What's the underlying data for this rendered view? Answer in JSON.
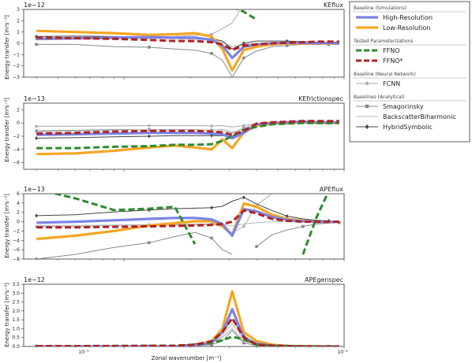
{
  "chart_data": [
    {
      "type": "line",
      "title": "KEflux",
      "offset_label": "1e−12",
      "ylabel": "Energy transfer [m²s⁻³]",
      "ylim": [
        -3,
        3
      ],
      "yticks": [
        "−3",
        "−2",
        "−1",
        "0",
        "1",
        "2",
        "3"
      ],
      "x": [
        4e-06,
        6e-06,
        9e-06,
        1.3e-05,
        1.7e-05,
        2.1e-05,
        2.5e-05,
        2.8e-05,
        3.1e-05,
        3.5e-05,
        4e-05,
        4.7e-05,
        5.5e-05,
        6.5e-05,
        7.5e-05,
        8.5e-05,
        9.5e-05
      ],
      "series": [
        {
          "key": "hr",
          "values": [
            0.4,
            0.45,
            0.5,
            0.55,
            0.5,
            0.5,
            0.3,
            -0.2,
            -1.3,
            -0.3,
            -0.1,
            0.0,
            0.05,
            0.05,
            0.0,
            0.05,
            0.0
          ]
        },
        {
          "key": "lr",
          "values": [
            1.1,
            1.0,
            0.9,
            0.75,
            0.8,
            0.9,
            0.6,
            -0.5,
            -2.4,
            -0.6,
            -0.3,
            -0.1,
            0.0,
            0.0,
            -0.05,
            0.0,
            0.0
          ]
        },
        {
          "key": "ffno",
          "values": [
            null,
            null,
            null,
            null,
            null,
            null,
            null,
            null,
            3.2,
            2.8,
            2.1,
            null,
            null,
            null,
            null,
            null,
            null
          ]
        },
        {
          "key": "ffnos",
          "values": [
            0.5,
            0.45,
            0.4,
            0.3,
            0.2,
            0.2,
            0.1,
            -0.1,
            -0.6,
            -0.2,
            -0.1,
            0.0,
            0.05,
            0.1,
            0.15,
            0.15,
            0.15
          ]
        },
        {
          "key": "fcnn",
          "values": [
            0.4,
            0.45,
            0.5,
            0.55,
            0.6,
            0.7,
            0.8,
            1.3,
            1.8,
            3.5,
            null,
            null,
            null,
            null,
            null,
            null,
            null
          ]
        },
        {
          "key": "smag",
          "values": [
            -0.1,
            -0.1,
            -0.3,
            -0.35,
            -0.5,
            -0.6,
            -0.9,
            -1.5,
            -3.0,
            -1.3,
            -0.7,
            -0.3,
            -0.2,
            -0.1,
            -0.1,
            -0.1,
            -0.1
          ]
        },
        {
          "key": "bsb",
          "values": [
            0.3,
            0.35,
            0.4,
            0.45,
            0.4,
            0.35,
            0.3,
            0.1,
            -0.3,
            -0.1,
            0.0,
            0.05,
            0.1,
            0.1,
            0.1,
            0.1,
            0.1
          ]
        },
        {
          "key": "hyb",
          "values": [
            0.6,
            0.65,
            0.6,
            0.55,
            0.5,
            0.5,
            0.4,
            0.2,
            -0.5,
            0.0,
            0.2,
            0.2,
            0.2,
            0.15,
            0.1,
            0.1,
            0.1
          ]
        }
      ]
    },
    {
      "type": "line",
      "title": "KEfrictionspec",
      "offset_label": "1e−13",
      "ylabel": "Energy transfer [m²s⁻³]",
      "ylim": [
        -7,
        3
      ],
      "yticks": [
        "−6",
        "−4",
        "−2",
        "0",
        "2"
      ],
      "x": [
        4e-06,
        6e-06,
        9e-06,
        1.3e-05,
        1.7e-05,
        2.1e-05,
        2.5e-05,
        2.8e-05,
        3.1e-05,
        3.5e-05,
        4e-05,
        4.7e-05,
        5.5e-05,
        6.5e-05,
        7.5e-05,
        8.5e-05,
        9.5e-05
      ],
      "series": [
        {
          "key": "hr",
          "values": [
            -1.8,
            -1.7,
            -1.6,
            -1.5,
            -1.5,
            -1.5,
            -1.6,
            -1.7,
            -2.3,
            -1.5,
            -0.2,
            0.0,
            0.1,
            0.2,
            0.1,
            0.1,
            0.1
          ]
        },
        {
          "key": "lr",
          "values": [
            -4.7,
            -4.6,
            -4.2,
            -3.7,
            -3.4,
            -3.7,
            -4.0,
            -2.5,
            -3.8,
            -1.4,
            -0.4,
            -0.1,
            0.0,
            0.1,
            0.0,
            0.0,
            0.0
          ]
        },
        {
          "key": "ffno",
          "values": [
            -3.8,
            -3.8,
            -3.6,
            -3.5,
            -3.3,
            -3.3,
            -3.2,
            -2.7,
            -2.0,
            -1.0,
            -0.6,
            -0.2,
            -0.1,
            0.0,
            0.0,
            0.0,
            0.0
          ]
        },
        {
          "key": "ffnos",
          "values": [
            -1.6,
            -1.5,
            -1.3,
            -1.2,
            -1.2,
            -1.2,
            -1.3,
            -1.4,
            -1.8,
            -1.2,
            -0.1,
            0.1,
            0.2,
            0.3,
            0.3,
            0.3,
            0.3
          ]
        },
        {
          "key": "fcnn",
          "values": [
            -0.5,
            -0.5,
            -0.45,
            -0.4,
            -0.4,
            -0.4,
            -0.45,
            -0.4,
            -0.6,
            -0.4,
            -0.1,
            0.0,
            0.0,
            0.0,
            0.0,
            0.0,
            0.0
          ]
        },
        {
          "key": "smag",
          "values": [
            -1.2,
            -1.1,
            -1.0,
            -1.0,
            -1.0,
            -1.0,
            -1.1,
            -1.0,
            -1.5,
            -0.8,
            -0.1,
            0.0,
            0.0,
            0.0,
            0.0,
            0.0,
            0.0
          ]
        },
        {
          "key": "bsb",
          "values": [
            -1.3,
            -1.2,
            -1.1,
            -1.0,
            -1.0,
            -1.0,
            -1.1,
            -1.0,
            -1.4,
            -0.8,
            -0.1,
            0.0,
            0.0,
            0.0,
            0.0,
            0.0,
            0.0
          ]
        },
        {
          "key": "hyb",
          "values": [
            -2.3,
            -2.2,
            -2.1,
            -2.0,
            -1.9,
            -1.9,
            -1.9,
            -1.9,
            -2.0,
            -1.3,
            -0.2,
            0.0,
            0.0,
            0.0,
            0.0,
            0.0,
            0.0
          ]
        }
      ]
    },
    {
      "type": "line",
      "title": "APEflux",
      "offset_label": "1e−13",
      "ylabel": "Energy transfer [m²s⁻³]",
      "ylim": [
        -8,
        6
      ],
      "yticks": [
        "−8",
        "−6",
        "−4",
        "−2",
        "0",
        "2",
        "4",
        "6"
      ],
      "x": [
        4e-06,
        6e-06,
        9e-06,
        1.3e-05,
        1.7e-05,
        2.1e-05,
        2.5e-05,
        2.8e-05,
        3.1e-05,
        3.5e-05,
        4e-05,
        4.7e-05,
        5.5e-05,
        6.5e-05,
        7.5e-05,
        8.5e-05,
        9.5e-05
      ],
      "series": [
        {
          "key": "hr",
          "values": [
            -0.2,
            0.0,
            0.3,
            0.6,
            0.8,
            0.8,
            0.5,
            -0.5,
            -3.0,
            2.7,
            2.2,
            1.0,
            0.4,
            0.1,
            0.0,
            0.0,
            0.0
          ]
        },
        {
          "key": "lr",
          "values": [
            -3.7,
            -3.0,
            -2.0,
            -0.8,
            -0.3,
            0.1,
            0.1,
            -1.0,
            -2.8,
            3.9,
            3.2,
            1.5,
            0.6,
            0.2,
            0.0,
            0.0,
            0.0
          ]
        },
        {
          "key": "ffno",
          "values": [
            7.0,
            5.0,
            2.5,
            2.8,
            3.2,
            -4.8,
            null,
            null,
            null,
            null,
            null,
            null,
            null,
            -7.0,
            1.0,
            6.5,
            7.0
          ]
        },
        {
          "key": "ffnos",
          "values": [
            -1.2,
            -1.2,
            -1.1,
            -1.0,
            -0.9,
            -0.8,
            -0.7,
            -0.5,
            0.0,
            2.4,
            1.8,
            0.6,
            0.2,
            0.0,
            0.0,
            0.0,
            0.0
          ]
        },
        {
          "key": "fcnn",
          "values": [
            -1.0,
            -1.0,
            -0.8,
            -0.6,
            -0.6,
            -0.5,
            -0.5,
            -1.0,
            -2.4,
            -1.0,
            3.5,
            6.0,
            7.0,
            null,
            null,
            null,
            null
          ]
        },
        {
          "key": "smag",
          "values": [
            -8.0,
            -7.0,
            -5.5,
            -4.5,
            -3.2,
            -2.3,
            -3.5,
            -6.0,
            -7.0,
            null,
            -5.3,
            -2.8,
            -1.8,
            -1.0,
            -0.5,
            -0.3,
            -0.2
          ]
        },
        {
          "key": "bsb",
          "values": [
            -0.8,
            -0.8,
            -0.7,
            -0.7,
            -0.7,
            -0.7,
            -0.6,
            -0.6,
            -0.9,
            -0.5,
            -0.2,
            0.0,
            0.0,
            0.0,
            0.0,
            0.0,
            0.0
          ]
        },
        {
          "key": "hyb",
          "values": [
            1.3,
            1.5,
            2.1,
            2.5,
            2.8,
            2.9,
            3.0,
            3.3,
            4.4,
            5.2,
            3.8,
            2.4,
            1.2,
            0.6,
            0.3,
            0.2,
            0.1
          ]
        }
      ]
    },
    {
      "type": "line",
      "title": "APEgenspec",
      "offset_label": "1e−12",
      "ylabel": "Energy transfer [m²s⁻³]",
      "xlabel": "Zonal wavenumber [m⁻¹]",
      "ylim": [
        0,
        3.5
      ],
      "yticks": [
        "0.0",
        "0.5",
        "1.0",
        "1.5",
        "2.0",
        "2.5",
        "3.0",
        "3.5"
      ],
      "xticks": [
        {
          "x": 1e-06,
          "label": "10⁻⁵"
        },
        {
          "x": 0.0001,
          "label": "10⁻⁴"
        }
      ],
      "x": [
        4e-06,
        6e-06,
        9e-06,
        1.3e-05,
        1.7e-05,
        2.1e-05,
        2.5e-05,
        2.8e-05,
        3.1e-05,
        3.5e-05,
        4e-05,
        4.7e-05,
        5.5e-05,
        6.5e-05,
        7.5e-05,
        8.5e-05,
        9.5e-05
      ],
      "series": [
        {
          "key": "hr",
          "values": [
            0.0,
            0.0,
            0.0,
            0.0,
            0.0,
            0.05,
            0.2,
            0.8,
            2.1,
            0.5,
            0.15,
            0.05,
            0.02,
            0.01,
            0.0,
            0.0,
            0.0
          ]
        },
        {
          "key": "lr",
          "values": [
            0.0,
            0.0,
            0.0,
            0.0,
            0.0,
            0.05,
            0.3,
            1.0,
            3.1,
            0.8,
            0.3,
            0.1,
            0.03,
            0.01,
            0.0,
            0.0,
            0.0
          ]
        },
        {
          "key": "ffno",
          "values": [
            0.02,
            0.02,
            0.03,
            0.04,
            0.05,
            0.1,
            0.2,
            0.35,
            0.55,
            0.4,
            0.1,
            0.05,
            0.02,
            0.01,
            0.0,
            0.0,
            0.0
          ]
        },
        {
          "key": "ffnos",
          "values": [
            0.02,
            0.02,
            0.02,
            0.03,
            0.03,
            0.1,
            0.3,
            0.8,
            1.6,
            0.5,
            0.1,
            0.05,
            0.02,
            0.01,
            0.0,
            0.0,
            0.0
          ]
        },
        {
          "key": "fcnn",
          "values": [
            0.0,
            0.0,
            0.0,
            0.0,
            0.0,
            0.05,
            0.2,
            0.5,
            1.0,
            0.3,
            0.1,
            0.03,
            0.01,
            0.0,
            0.0,
            0.0,
            0.0
          ]
        },
        {
          "key": "smag",
          "values": [
            0.02,
            0.02,
            0.02,
            0.02,
            0.02,
            0.05,
            0.1,
            0.3,
            0.9,
            0.2,
            0.05,
            0.02,
            0.01,
            0.0,
            0.0,
            0.0,
            0.0
          ]
        },
        {
          "key": "bsb",
          "values": [
            0.0,
            0.0,
            0.0,
            0.0,
            0.0,
            0.05,
            0.2,
            0.6,
            1.3,
            0.4,
            0.1,
            0.03,
            0.01,
            0.0,
            0.0,
            0.0,
            0.0
          ]
        },
        {
          "key": "hyb",
          "values": [
            0.0,
            0.0,
            0.0,
            0.02,
            0.05,
            0.15,
            0.3,
            0.8,
            1.5,
            0.6,
            0.15,
            0.05,
            0.02,
            0.01,
            0.0,
            0.0,
            0.0
          ]
        }
      ]
    }
  ],
  "legend": {
    "placement": "right",
    "groups": [
      {
        "header": "Baseline (Simulations)",
        "items": [
          {
            "key": "hr",
            "label": "High-Resolution",
            "color": "#7b83e6",
            "style": "solid-thick"
          },
          {
            "key": "lr",
            "label": "Low-Resolution",
            "color": "#f5a623",
            "style": "solid-thick"
          }
        ]
      },
      {
        "header": "Tested Parameterizations",
        "items": [
          {
            "key": "ffno",
            "label": "FFNO",
            "color": "#2e8b2e",
            "style": "dashed-thick"
          },
          {
            "key": "ffnos",
            "label": "FFNO*",
            "color": "#b22222",
            "style": "dashed-thick"
          }
        ]
      },
      {
        "header": "Baseline (Neural Network)",
        "items": [
          {
            "key": "fcnn",
            "label": "FCNN",
            "color": "#aaaaaa",
            "style": "line-dot"
          }
        ]
      },
      {
        "header": "Baselines (Analytical)",
        "items": [
          {
            "key": "smag",
            "label": "Smagorinsky",
            "color": "#888888",
            "style": "line-square"
          },
          {
            "key": "bsb",
            "label": "BackscatterBiharmonic",
            "color": "#bbbbbb",
            "style": "line-plain"
          },
          {
            "key": "hyb",
            "label": "HybridSymbolic",
            "color": "#444444",
            "style": "line-diamond"
          }
        ]
      }
    ]
  }
}
